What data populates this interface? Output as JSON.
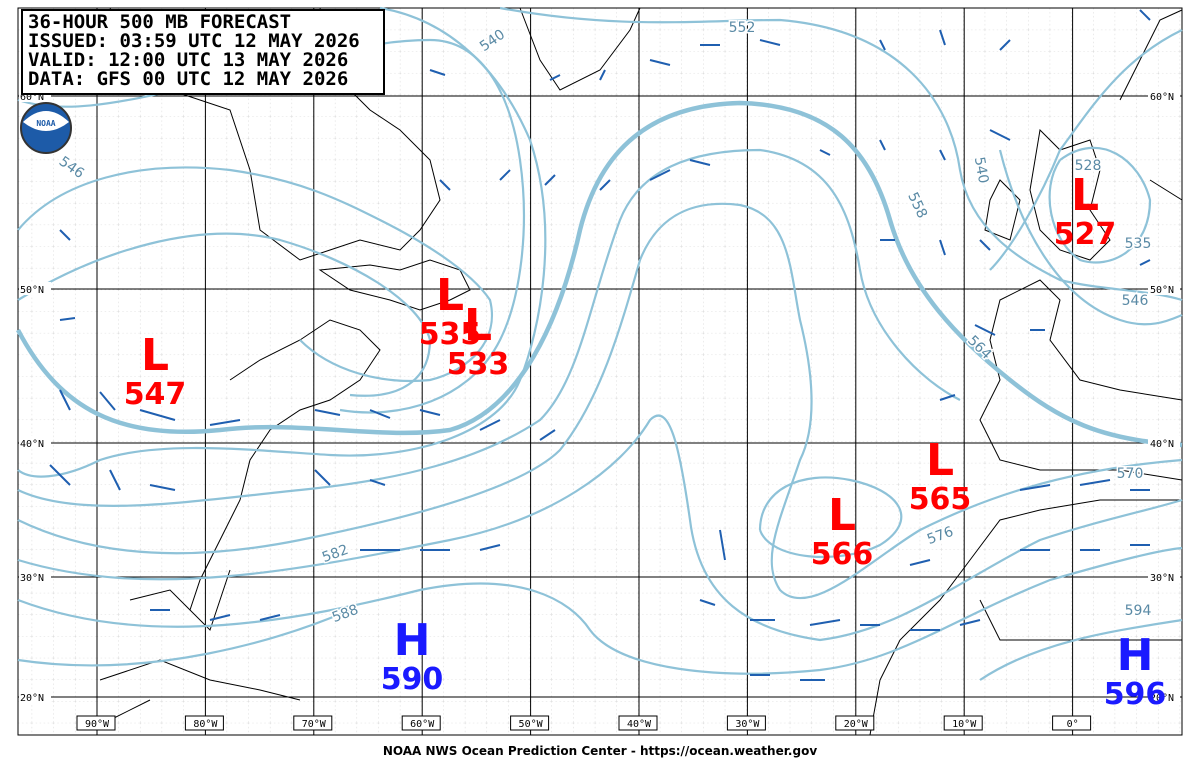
{
  "header": {
    "lines": [
      "36-HOUR 500 MB FORECAST",
      "ISSUED: 03:59 UTC 12 MAY 2026",
      "VALID:  12:00 UTC 13 MAY 2026",
      "DATA:  GFS 00 UTC 12 MAY 2026"
    ]
  },
  "logo": "NOAA",
  "latitudes": [
    "60°N",
    "50°N",
    "40°N",
    "30°N",
    "20°N"
  ],
  "longitudes": [
    "90°W",
    "80°W",
    "70°W",
    "60°W",
    "50°W",
    "40°W",
    "30°W",
    "20°W",
    "10°W",
    "0°"
  ],
  "contour_labels": [
    "540",
    "552",
    "546",
    "558",
    "540",
    "528",
    "546",
    "535",
    "564",
    "570",
    "576",
    "582",
    "588",
    "594"
  ],
  "centers": [
    {
      "type": "L",
      "value": "547"
    },
    {
      "type": "L",
      "value": "535"
    },
    {
      "type": "L",
      "value": "533"
    },
    {
      "type": "L",
      "value": "565"
    },
    {
      "type": "L",
      "value": "566"
    },
    {
      "type": "L",
      "value": "527"
    },
    {
      "type": "H",
      "value": "590"
    },
    {
      "type": "H",
      "value": "596"
    }
  ],
  "footer": "NOAA NWS Ocean Prediction Center - https://ocean.weather.gov"
}
